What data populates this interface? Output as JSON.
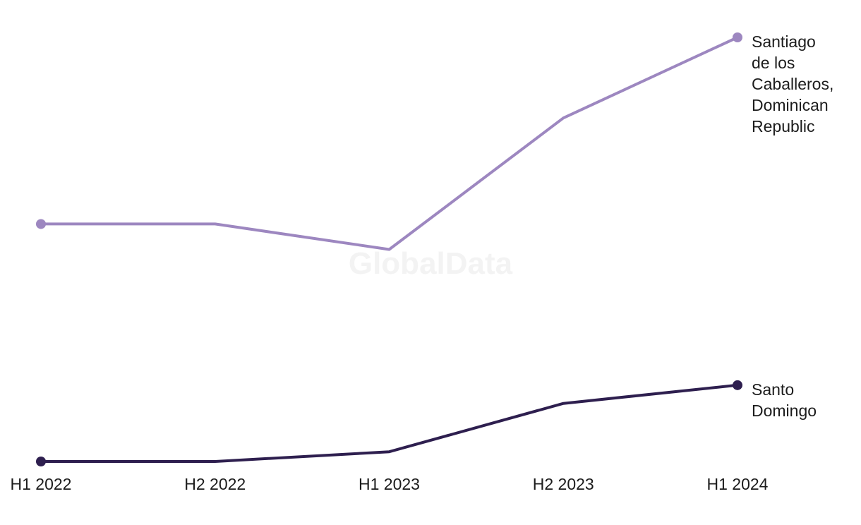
{
  "watermark": "GlobalData",
  "chart_data": {
    "type": "line",
    "title": "",
    "xlabel": "",
    "ylabel": "",
    "categories": [
      "H1 2022",
      "H2 2022",
      "H1 2023",
      "H2 2023",
      "H1 2024"
    ],
    "ylim": [
      0,
      100
    ],
    "grid": false,
    "legend": "none",
    "series": [
      {
        "name": "Santiago de los Caballeros, Dominican Republic",
        "label_lines": [
          "Santiago",
          "de los",
          "Caballeros,",
          "Dominican",
          "Republic"
        ],
        "color": "#9d87c0",
        "values": [
          56,
          56,
          50,
          81,
          100
        ]
      },
      {
        "name": "Santo Domingo",
        "label_lines": [
          "Santo",
          "Domingo"
        ],
        "color": "#2e1f4f",
        "values": [
          0,
          0,
          2.3,
          13.7,
          18
        ]
      }
    ]
  }
}
